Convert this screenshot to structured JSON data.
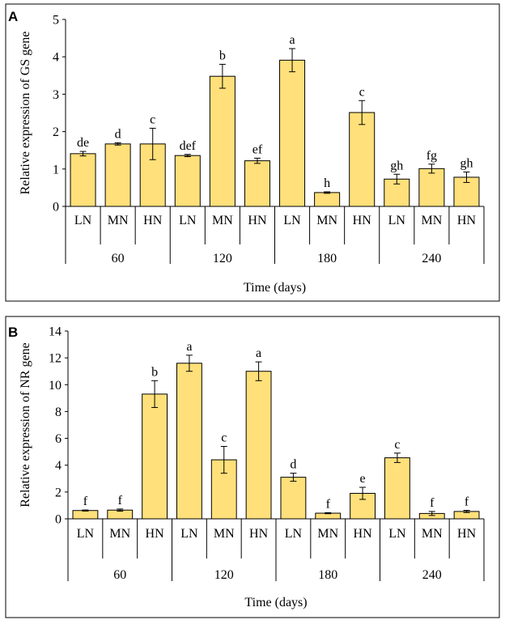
{
  "chart_data": [
    {
      "panel": "A",
      "type": "bar",
      "ylabel": "Relative  expression  of GS  gene",
      "xlabel": "Time  (days)",
      "ylim": [
        0,
        5
      ],
      "yticks": [
        0,
        1,
        2,
        3,
        4,
        5
      ],
      "bar_color": "#FFE07A",
      "groups": [
        {
          "time": "60",
          "bars": [
            {
              "treatment": "LN",
              "value": 1.41,
              "error": 0.06,
              "letter": "de"
            },
            {
              "treatment": "MN",
              "value": 1.67,
              "error": 0.03,
              "letter": "d"
            },
            {
              "treatment": "HN",
              "value": 1.67,
              "error": 0.42,
              "letter": "c"
            }
          ]
        },
        {
          "time": "120",
          "bars": [
            {
              "treatment": "LN",
              "value": 1.36,
              "error": 0.03,
              "letter": "def"
            },
            {
              "treatment": "MN",
              "value": 3.48,
              "error": 0.32,
              "letter": "b"
            },
            {
              "treatment": "HN",
              "value": 1.22,
              "error": 0.07,
              "letter": "ef"
            }
          ]
        },
        {
          "time": "180",
          "bars": [
            {
              "treatment": "LN",
              "value": 3.91,
              "error": 0.31,
              "letter": "a"
            },
            {
              "treatment": "MN",
              "value": 0.37,
              "error": 0.02,
              "letter": "h"
            },
            {
              "treatment": "HN",
              "value": 2.51,
              "error": 0.32,
              "letter": "c"
            }
          ]
        },
        {
          "time": "240",
          "bars": [
            {
              "treatment": "LN",
              "value": 0.73,
              "error": 0.13,
              "letter": "gh"
            },
            {
              "treatment": "MN",
              "value": 1.01,
              "error": 0.12,
              "letter": "fg"
            },
            {
              "treatment": "HN",
              "value": 0.78,
              "error": 0.14,
              "letter": "gh"
            }
          ]
        }
      ]
    },
    {
      "panel": "B",
      "type": "bar",
      "ylabel": "Relative  expression  of NR gene",
      "xlabel": "Time  (days)",
      "ylim": [
        0,
        14
      ],
      "yticks": [
        0,
        2,
        4,
        6,
        8,
        10,
        12,
        14
      ],
      "bar_color": "#FFE07A",
      "groups": [
        {
          "time": "60",
          "bars": [
            {
              "treatment": "LN",
              "value": 0.62,
              "error": 0.04,
              "letter": "f"
            },
            {
              "treatment": "MN",
              "value": 0.65,
              "error": 0.08,
              "letter": "f"
            },
            {
              "treatment": "HN",
              "value": 9.3,
              "error": 1.0,
              "letter": "b"
            }
          ]
        },
        {
          "time": "120",
          "bars": [
            {
              "treatment": "LN",
              "value": 11.6,
              "error": 0.6,
              "letter": "a"
            },
            {
              "treatment": "MN",
              "value": 4.4,
              "error": 1.0,
              "letter": "c"
            },
            {
              "treatment": "HN",
              "value": 11.0,
              "error": 0.7,
              "letter": "a"
            }
          ]
        },
        {
          "time": "180",
          "bars": [
            {
              "treatment": "LN",
              "value": 3.1,
              "error": 0.3,
              "letter": "d"
            },
            {
              "treatment": "MN",
              "value": 0.42,
              "error": 0.04,
              "letter": "f"
            },
            {
              "treatment": "HN",
              "value": 1.9,
              "error": 0.45,
              "letter": "e"
            }
          ]
        },
        {
          "time": "240",
          "bars": [
            {
              "treatment": "LN",
              "value": 4.55,
              "error": 0.35,
              "letter": "c"
            },
            {
              "treatment": "MN",
              "value": 0.4,
              "error": 0.15,
              "letter": "f"
            },
            {
              "treatment": "HN",
              "value": 0.55,
              "error": 0.08,
              "letter": "f"
            }
          ]
        }
      ]
    }
  ]
}
